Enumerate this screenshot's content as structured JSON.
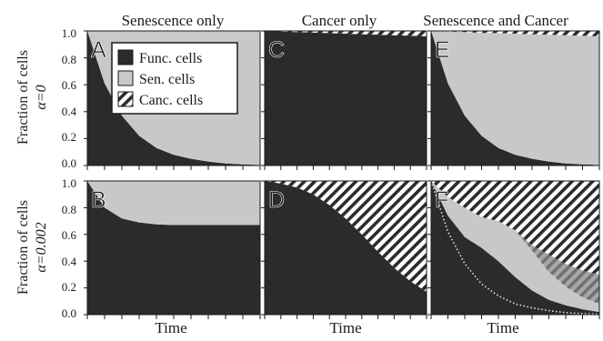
{
  "figure": {
    "column_titles": [
      "Senescence only",
      "Cancer only",
      "Senescence and Cancer"
    ],
    "row_labels": [
      {
        "ylabel": "Fraction of cells",
        "alpha": "α=0"
      },
      {
        "ylabel": "Fraction of cells",
        "alpha": "α=0.002"
      }
    ],
    "xlabel": "Time",
    "yticks": [
      "0.0",
      "0.2",
      "0.4",
      "0.6",
      "0.8",
      "1.0"
    ],
    "legend": [
      {
        "label": "Func. cells",
        "style": "dark"
      },
      {
        "label": "Sen. cells",
        "style": "light"
      },
      {
        "label": "Canc. cells",
        "style": "hatch"
      }
    ],
    "colors": {
      "functional": "#2b2b2b",
      "senescent": "#c8c8c8",
      "cancer_bg": "#ffffff",
      "cancer_hatch": "#2b2b2b",
      "dotted": "#e6e6e6",
      "shade": "#8a8a8a"
    }
  },
  "chart_data": [
    {
      "panel": "A",
      "type": "area",
      "alpha": 0,
      "column": "Senescence only",
      "xlim": [
        0,
        1
      ],
      "ylim": [
        0,
        1
      ],
      "x": [
        0,
        0.1,
        0.2,
        0.3,
        0.4,
        0.5,
        0.6,
        0.7,
        0.8,
        0.9,
        1.0
      ],
      "functional": [
        1.0,
        0.61,
        0.37,
        0.22,
        0.13,
        0.08,
        0.05,
        0.03,
        0.015,
        0.008,
        0.004
      ],
      "senescent": [
        0.0,
        0.39,
        0.63,
        0.78,
        0.87,
        0.92,
        0.95,
        0.97,
        0.985,
        0.992,
        0.996
      ],
      "cancer": [
        0,
        0,
        0,
        0,
        0,
        0,
        0,
        0,
        0,
        0,
        0
      ]
    },
    {
      "panel": "B",
      "type": "area",
      "alpha": 0.002,
      "column": "Senescence only",
      "xlim": [
        0,
        1
      ],
      "ylim": [
        0,
        1
      ],
      "x": [
        0,
        0.1,
        0.2,
        0.3,
        0.4,
        0.5,
        0.6,
        0.7,
        0.8,
        0.9,
        1.0
      ],
      "functional": [
        1.0,
        0.8,
        0.72,
        0.69,
        0.675,
        0.67,
        0.67,
        0.67,
        0.67,
        0.67,
        0.67
      ],
      "senescent": [
        0.0,
        0.2,
        0.28,
        0.31,
        0.325,
        0.33,
        0.33,
        0.33,
        0.33,
        0.33,
        0.33
      ],
      "cancer": [
        0,
        0,
        0,
        0,
        0,
        0,
        0,
        0,
        0,
        0,
        0
      ]
    },
    {
      "panel": "C",
      "type": "area",
      "alpha": 0,
      "column": "Cancer only",
      "xlim": [
        0,
        1
      ],
      "ylim": [
        0,
        1
      ],
      "x": [
        0,
        0.1,
        0.2,
        0.3,
        0.4,
        0.5,
        0.6,
        0.7,
        0.8,
        0.9,
        1.0
      ],
      "functional": [
        1.0,
        0.996,
        0.992,
        0.988,
        0.984,
        0.98,
        0.976,
        0.972,
        0.968,
        0.964,
        0.96
      ],
      "senescent": [
        0,
        0,
        0,
        0,
        0,
        0,
        0,
        0,
        0,
        0,
        0
      ],
      "cancer": [
        0.0,
        0.004,
        0.008,
        0.012,
        0.016,
        0.02,
        0.024,
        0.028,
        0.032,
        0.036,
        0.04
      ]
    },
    {
      "panel": "D",
      "type": "area",
      "alpha": 0.002,
      "column": "Cancer only",
      "xlim": [
        0,
        1
      ],
      "ylim": [
        0,
        1
      ],
      "x": [
        0,
        0.1,
        0.2,
        0.3,
        0.4,
        0.5,
        0.6,
        0.7,
        0.8,
        0.9,
        1.0
      ],
      "functional": [
        1.0,
        0.98,
        0.95,
        0.9,
        0.82,
        0.72,
        0.6,
        0.47,
        0.35,
        0.25,
        0.17
      ],
      "senescent": [
        0,
        0,
        0,
        0,
        0,
        0,
        0,
        0,
        0,
        0,
        0
      ],
      "cancer": [
        0.0,
        0.02,
        0.05,
        0.1,
        0.18,
        0.28,
        0.4,
        0.53,
        0.65,
        0.75,
        0.83
      ]
    },
    {
      "panel": "E",
      "type": "area",
      "alpha": 0,
      "column": "Senescence and Cancer",
      "xlim": [
        0,
        1
      ],
      "ylim": [
        0,
        1
      ],
      "x": [
        0,
        0.1,
        0.2,
        0.3,
        0.4,
        0.5,
        0.6,
        0.7,
        0.8,
        0.9,
        1.0
      ],
      "functional": [
        1.0,
        0.61,
        0.37,
        0.22,
        0.13,
        0.08,
        0.05,
        0.03,
        0.015,
        0.008,
        0.004
      ],
      "senescent": [
        0.0,
        0.386,
        0.622,
        0.766,
        0.854,
        0.9,
        0.926,
        0.942,
        0.953,
        0.956,
        0.956
      ],
      "cancer": [
        0.0,
        0.004,
        0.008,
        0.014,
        0.016,
        0.02,
        0.024,
        0.028,
        0.032,
        0.036,
        0.04
      ]
    },
    {
      "panel": "F",
      "type": "area",
      "alpha": 0.002,
      "column": "Senescence and Cancer",
      "xlim": [
        0,
        1
      ],
      "ylim": [
        0,
        1
      ],
      "x": [
        0,
        0.1,
        0.2,
        0.3,
        0.4,
        0.5,
        0.6,
        0.7,
        0.8,
        0.9,
        1.0
      ],
      "functional": [
        1.0,
        0.74,
        0.58,
        0.5,
        0.4,
        0.28,
        0.18,
        0.11,
        0.07,
        0.04,
        0.02
      ],
      "senescent": [
        0.0,
        0.14,
        0.22,
        0.23,
        0.3,
        0.35,
        0.3,
        0.21,
        0.14,
        0.09,
        0.06
      ],
      "cancer": [
        0.0,
        0.12,
        0.2,
        0.27,
        0.3,
        0.37,
        0.52,
        0.68,
        0.79,
        0.87,
        0.92
      ],
      "dotted_line": [
        1.0,
        0.62,
        0.38,
        0.23,
        0.14,
        0.08,
        0.05,
        0.03,
        0.015,
        0.008,
        0.004
      ],
      "shaded_band_lower": [
        null,
        null,
        null,
        null,
        null,
        0.6,
        0.52,
        0.45,
        0.38,
        0.33,
        0.3
      ]
    }
  ]
}
